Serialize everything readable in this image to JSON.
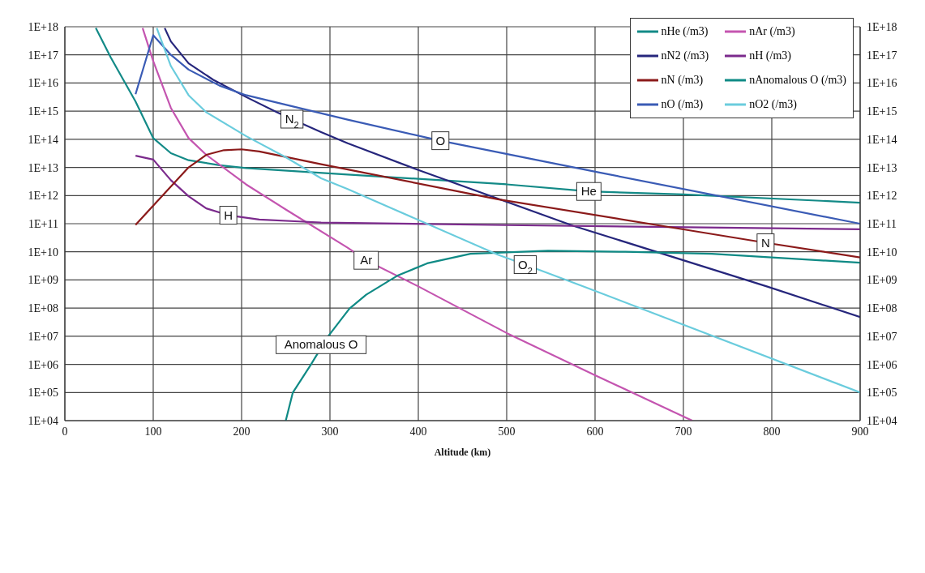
{
  "chart_data": {
    "type": "line",
    "xlabel": "Altitude (km)",
    "xlim": [
      0,
      900
    ],
    "xticks": [
      0,
      100,
      200,
      300,
      400,
      500,
      600,
      700,
      800,
      900
    ],
    "ylim": [
      10000,
      1e+18
    ],
    "yticks": [
      {
        "value": 10000.0,
        "label": "1E+04"
      },
      {
        "value": 100000.0,
        "label": "1E+05"
      },
      {
        "value": 1000000.0,
        "label": "1E+06"
      },
      {
        "value": 10000000.0,
        "label": "1E+07"
      },
      {
        "value": 100000000.0,
        "label": "1E+08"
      },
      {
        "value": 1000000000.0,
        "label": "1E+09"
      },
      {
        "value": 10000000000.0,
        "label": "1E+10"
      },
      {
        "value": 100000000000.0,
        "label": "1E+11"
      },
      {
        "value": 1000000000000.0,
        "label": "1E+12"
      },
      {
        "value": 10000000000000.0,
        "label": "1E+13"
      },
      {
        "value": 100000000000000.0,
        "label": "1E+14"
      },
      {
        "value": 1000000000000000.0,
        "label": "1E+15"
      },
      {
        "value": 1e+16,
        "label": "1E+16"
      },
      {
        "value": 1e+17,
        "label": "1E+17"
      },
      {
        "value": 1e+18,
        "label": "1E+18"
      }
    ],
    "log": true,
    "grid": true,
    "legend": "top right",
    "marker": "none",
    "line_style": "solid",
    "series": [
      {
        "name": "nHe (/m3)",
        "color": "#138a87",
        "x": [
          35,
          52,
          80,
          100,
          120,
          140,
          175,
          205,
          320,
          500,
          593,
          700,
          900
        ],
        "values": [
          9e+17,
          8e+16,
          2200000000000000.0,
          110000000000000.0,
          32000000000000.0,
          18000000000000.0,
          12000000000000.0,
          9500000000000.0,
          5600000000000.0,
          2500000000000.0,
          1400000000000.0,
          1100000000000.0,
          560000000000.0
        ]
      },
      {
        "name": "nAr (/m3)",
        "color": "#c455b0",
        "x": [
          88,
          100,
          120,
          140,
          160,
          205,
          250,
          320,
          341,
          400,
          500,
          600,
          710
        ],
        "values": [
          9e+17,
          6e+16,
          1300000000000000.0,
          110000000000000.0,
          28000000000000.0,
          2500000000000.0,
          320000000000.0,
          14000000000.0,
          5000000000.0,
          590000000.0,
          13000000.0,
          410000.0,
          10000.0
        ]
      },
      {
        "name": "nN2 (/m3)",
        "color": "#26267c",
        "x": [
          113,
          120,
          140,
          168,
          205,
          240,
          257,
          290,
          320,
          400,
          575,
          795,
          900
        ],
        "values": [
          9e+17,
          3e+17,
          5e+16,
          1.3e+16,
          3200000000000000.0,
          910000000000000.0,
          520000000000000.0,
          180000000000000.0,
          72000000000000.0,
          8100000000000.0,
          85000000000.0,
          580000000.0,
          48000000.0
        ]
      },
      {
        "name": "nH (/m3)",
        "color": "#7b2a8c",
        "x": [
          80,
          100,
          120,
          140,
          160,
          185,
          220,
          265,
          290,
          500,
          900
        ],
        "values": [
          26000000000000.0,
          19000000000000.0,
          3500000000000.0,
          950000000000.0,
          350000000000.0,
          200000000000.0,
          140000000000.0,
          120000000000.0,
          110000000000.0,
          89000000000.0,
          63000000000.0
        ]
      },
      {
        "name": "nN (/m3)",
        "color": "#8b1a1a",
        "x": [
          80,
          100,
          140,
          160,
          180,
          200,
          220,
          290,
          490,
          700,
          793,
          900
        ],
        "values": [
          91000000000.0,
          440000000000.0,
          10000000000000.0,
          28000000000000.0,
          41000000000000.0,
          44000000000000.0,
          37000000000000.0,
          13000000000000.0,
          740000000000.0,
          63000000000.0,
          21000000000.0,
          6300000000.0
        ]
      },
      {
        "name": "nAnomalous O (/m3)",
        "color": "#0f8a85",
        "x": [
          250,
          258,
          278,
          298,
          322,
          341,
          376,
          410,
          459,
          547,
          634,
          732,
          900
        ],
        "values": [
          10000.0,
          100000.0,
          930000.0,
          10000000.0,
          95000000.0,
          300000000.0,
          1400000000.0,
          3900000000.0,
          8500000000.0,
          11000000000.0,
          10000000000.0,
          8500000000.0,
          4100000000.0
        ]
      },
      {
        "name": "nO (/m3)",
        "color": "#3a5bb5",
        "x": [
          80,
          100,
          120,
          140,
          175,
          205,
          320,
          425,
          605,
          900
        ],
        "values": [
          4000000000000000.0,
          5e+17,
          1e+17,
          3e+16,
          8100000000000000.0,
          3700000000000000.0,
          500000000000000.0,
          89000000000000.0,
          6600000000000.0,
          100000000000.0
        ]
      },
      {
        "name": "nO2 (/m3)",
        "color": "#6accdd",
        "x": [
          104,
          120,
          140,
          160,
          205,
          250,
          290,
          320,
          490,
          521,
          590,
          900
        ],
        "values": [
          9e+17,
          4e+16,
          3700000000000000.0,
          910000000000000.0,
          130000000000000.0,
          23000000000000.0,
          4100000000000.0,
          1700000000000.0,
          7900000000.0,
          3500000000.0,
          540000000.0,
          100000.0
        ]
      }
    ],
    "annotations": [
      {
        "text": "N$_{2}$",
        "x": 257,
        "y": 520000000000000.0
      },
      {
        "text": "O",
        "x": 425,
        "y": 89000000000000.0
      },
      {
        "text": "He",
        "x": 593,
        "y": 1400000000000.0
      },
      {
        "text": "H",
        "x": 185,
        "y": 200000000000.0
      },
      {
        "text": "Ar",
        "x": 341,
        "y": 5000000000.0
      },
      {
        "text": "O$_{2}$",
        "x": 521,
        "y": 3500000000.0
      },
      {
        "text": "N",
        "x": 793,
        "y": 21000000000.0
      },
      {
        "text": "Anomalous O",
        "x": 290,
        "y": 5000000.0
      }
    ]
  }
}
